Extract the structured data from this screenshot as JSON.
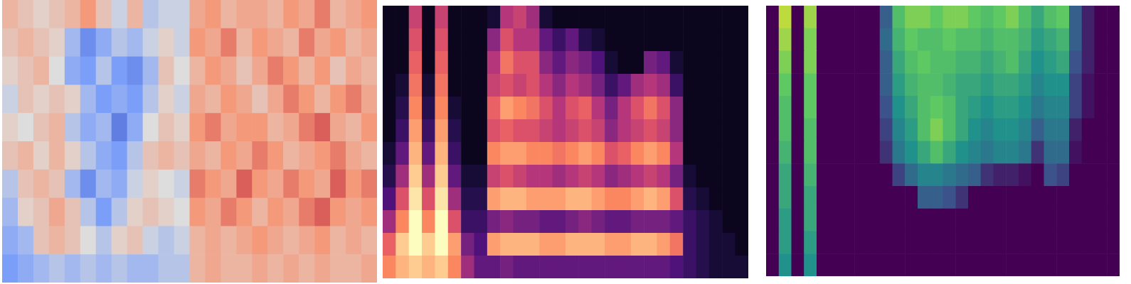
{
  "chart_data": [
    {
      "type": "heatmap",
      "color": "coolwarm",
      "zlim": [
        -1,
        1
      ],
      "tick_labels": false,
      "cells": [
        [
          0.3,
          0.2,
          0.1,
          0.2,
          0.3,
          0.5,
          0.2,
          -0.1,
          0.3,
          -0.2,
          -0.1,
          -0.1,
          0.4,
          0.5,
          0.3,
          0.4,
          0.4,
          0.3,
          0.5,
          0.4,
          0.6,
          0.3,
          0.4,
          0.5
        ],
        [
          0.2,
          0.3,
          0.2,
          0.1,
          -0.3,
          -0.6,
          -0.4,
          -0.2,
          -0.3,
          -0.1,
          0.1,
          -0.1,
          0.5,
          0.4,
          0.6,
          0.3,
          0.5,
          0.4,
          0.3,
          0.6,
          0.4,
          0.5,
          0.3,
          0.4
        ],
        [
          0.1,
          0.2,
          0.3,
          0.0,
          -0.4,
          -0.5,
          -0.2,
          -0.5,
          -0.6,
          -0.3,
          0.2,
          0.0,
          0.3,
          0.5,
          0.4,
          0.2,
          0.4,
          0.6,
          0.5,
          0.3,
          0.5,
          0.2,
          0.4,
          0.3
        ],
        [
          -0.1,
          0.2,
          0.1,
          0.2,
          0.1,
          -0.3,
          -0.5,
          -0.4,
          -0.5,
          -0.2,
          0.1,
          -0.1,
          0.4,
          0.3,
          0.5,
          0.4,
          0.2,
          0.4,
          0.6,
          0.5,
          0.3,
          0.5,
          0.6,
          0.4
        ],
        [
          0.1,
          0.0,
          0.2,
          0.3,
          -0.2,
          -0.4,
          -0.3,
          -0.7,
          -0.4,
          0.0,
          0.2,
          0.1,
          0.5,
          0.6,
          0.4,
          0.5,
          0.5,
          0.3,
          0.4,
          0.6,
          0.7,
          0.4,
          0.3,
          0.5
        ],
        [
          0.2,
          0.3,
          0.1,
          0.3,
          0.1,
          -0.2,
          -0.4,
          -0.5,
          -0.2,
          0.2,
          0.3,
          0.2,
          0.4,
          0.3,
          0.5,
          0.4,
          0.6,
          0.5,
          0.3,
          0.4,
          0.5,
          0.6,
          0.4,
          0.3
        ],
        [
          -0.2,
          0.2,
          0.3,
          0.2,
          -0.3,
          -0.6,
          -0.3,
          -0.4,
          -0.1,
          0.1,
          0.0,
          -0.1,
          0.6,
          0.5,
          0.4,
          0.7,
          0.5,
          0.4,
          0.6,
          0.5,
          0.4,
          0.7,
          0.5,
          0.6
        ],
        [
          -0.3,
          0.1,
          0.2,
          0.4,
          0.2,
          -0.2,
          -0.5,
          -0.2,
          0.1,
          0.2,
          0.1,
          0.0,
          0.5,
          0.4,
          0.6,
          0.5,
          0.3,
          0.5,
          0.4,
          0.6,
          0.7,
          0.5,
          0.4,
          0.5
        ],
        [
          -0.4,
          -0.3,
          0.2,
          0.3,
          0.2,
          0.0,
          -0.2,
          0.1,
          0.2,
          -0.1,
          -0.2,
          -0.1,
          0.3,
          0.4,
          0.3,
          0.4,
          0.5,
          0.4,
          0.3,
          0.4,
          0.5,
          0.3,
          0.4,
          0.3
        ],
        [
          -0.5,
          -0.4,
          -0.3,
          -0.2,
          -0.3,
          -0.2,
          -0.3,
          -0.2,
          -0.3,
          -0.3,
          -0.2,
          -0.2,
          0.3,
          0.4,
          0.3,
          0.3,
          0.4,
          0.3,
          0.4,
          0.3,
          0.4,
          0.3,
          0.3,
          0.4
        ]
      ]
    },
    {
      "type": "heatmap",
      "color": "magma",
      "zlim": [
        0,
        1
      ],
      "tick_labels": false,
      "cells": [
        [
          0.05,
          0.05,
          0.55,
          0.05,
          0.55,
          0.05,
          0.05,
          0.05,
          0.1,
          0.5,
          0.55,
          0.45,
          0.1,
          0.05,
          0.05,
          0.05,
          0.05,
          0.05,
          0.05,
          0.05,
          0.05,
          0.05,
          0.05,
          0.05,
          0.05,
          0.05,
          0.05,
          0.05
        ],
        [
          0.05,
          0.05,
          0.6,
          0.05,
          0.6,
          0.05,
          0.05,
          0.05,
          0.4,
          0.6,
          0.5,
          0.5,
          0.3,
          0.2,
          0.3,
          0.15,
          0.1,
          0.05,
          0.05,
          0.05,
          0.05,
          0.05,
          0.05,
          0.05,
          0.05,
          0.05,
          0.05,
          0.05
        ],
        [
          0.05,
          0.05,
          0.65,
          0.05,
          0.65,
          0.05,
          0.05,
          0.05,
          0.5,
          0.7,
          0.6,
          0.6,
          0.4,
          0.3,
          0.4,
          0.35,
          0.25,
          0.1,
          0.05,
          0.05,
          0.35,
          0.3,
          0.1,
          0.05,
          0.05,
          0.05,
          0.05,
          0.05
        ],
        [
          0.05,
          0.1,
          0.7,
          0.1,
          0.7,
          0.05,
          0.05,
          0.05,
          0.55,
          0.6,
          0.55,
          0.6,
          0.5,
          0.4,
          0.5,
          0.45,
          0.35,
          0.2,
          0.3,
          0.45,
          0.5,
          0.45,
          0.2,
          0.05,
          0.05,
          0.05,
          0.05,
          0.05
        ],
        [
          0.05,
          0.15,
          0.75,
          0.15,
          0.75,
          0.1,
          0.05,
          0.05,
          0.65,
          0.8,
          0.75,
          0.7,
          0.6,
          0.5,
          0.6,
          0.65,
          0.5,
          0.35,
          0.5,
          0.6,
          0.7,
          0.6,
          0.4,
          0.05,
          0.05,
          0.05,
          0.05,
          0.05
        ],
        [
          0.05,
          0.2,
          0.8,
          0.2,
          0.8,
          0.15,
          0.05,
          0.05,
          0.6,
          0.65,
          0.6,
          0.6,
          0.55,
          0.5,
          0.55,
          0.6,
          0.55,
          0.4,
          0.5,
          0.55,
          0.6,
          0.55,
          0.4,
          0.05,
          0.05,
          0.05,
          0.05,
          0.05
        ],
        [
          0.1,
          0.3,
          0.85,
          0.3,
          0.85,
          0.2,
          0.05,
          0.05,
          0.75,
          0.8,
          0.8,
          0.75,
          0.75,
          0.7,
          0.75,
          0.8,
          0.75,
          0.6,
          0.65,
          0.75,
          0.8,
          0.75,
          0.5,
          0.05,
          0.05,
          0.05,
          0.05,
          0.05
        ],
        [
          0.15,
          0.45,
          0.9,
          0.45,
          0.9,
          0.3,
          0.1,
          0.1,
          0.55,
          0.6,
          0.55,
          0.5,
          0.5,
          0.45,
          0.5,
          0.55,
          0.5,
          0.4,
          0.45,
          0.5,
          0.55,
          0.5,
          0.35,
          0.1,
          0.05,
          0.05,
          0.05,
          0.05
        ],
        [
          0.25,
          0.6,
          0.95,
          0.6,
          0.95,
          0.45,
          0.15,
          0.15,
          0.8,
          0.85,
          0.85,
          0.8,
          0.8,
          0.8,
          0.85,
          0.85,
          0.8,
          0.75,
          0.75,
          0.8,
          0.85,
          0.8,
          0.6,
          0.15,
          0.1,
          0.05,
          0.05,
          0.05
        ],
        [
          0.45,
          0.75,
          1.0,
          0.75,
          1.0,
          0.6,
          0.2,
          0.2,
          0.35,
          0.4,
          0.35,
          0.35,
          0.3,
          0.3,
          0.35,
          0.4,
          0.35,
          0.3,
          0.3,
          0.35,
          0.35,
          0.35,
          0.3,
          0.2,
          0.15,
          0.1,
          0.05,
          0.05
        ],
        [
          0.65,
          0.9,
          1.0,
          0.9,
          1.0,
          0.8,
          0.35,
          0.25,
          0.8,
          0.85,
          0.85,
          0.85,
          0.8,
          0.8,
          0.85,
          0.85,
          0.85,
          0.8,
          0.8,
          0.85,
          0.85,
          0.8,
          0.7,
          0.2,
          0.15,
          0.1,
          0.1,
          0.05
        ],
        [
          0.75,
          0.85,
          0.9,
          0.85,
          0.9,
          0.75,
          0.45,
          0.3,
          0.3,
          0.35,
          0.3,
          0.3,
          0.3,
          0.3,
          0.3,
          0.3,
          0.3,
          0.3,
          0.3,
          0.3,
          0.3,
          0.3,
          0.25,
          0.2,
          0.15,
          0.1,
          0.1,
          0.1
        ]
      ]
    },
    {
      "type": "heatmap",
      "color": "viridis",
      "zlim": [
        0,
        1
      ],
      "tick_labels": false,
      "cells": [
        [
          0,
          0.9,
          0,
          0.85,
          0,
          0,
          0,
          0,
          0,
          0.3,
          0.7,
          0.8,
          0.8,
          0.75,
          0.8,
          0.8,
          0.75,
          0.7,
          0.75,
          0.8,
          0.7,
          0.6,
          0.7,
          0.75,
          0.3,
          0.1,
          0,
          0
        ],
        [
          0,
          0.85,
          0,
          0.8,
          0,
          0,
          0,
          0,
          0,
          0.35,
          0.65,
          0.75,
          0.7,
          0.7,
          0.75,
          0.7,
          0.7,
          0.65,
          0.7,
          0.7,
          0.65,
          0.55,
          0.6,
          0.65,
          0.3,
          0.1,
          0,
          0
        ],
        [
          0,
          0.8,
          0,
          0.8,
          0,
          0,
          0,
          0,
          0,
          0.3,
          0.6,
          0.7,
          0.75,
          0.7,
          0.7,
          0.65,
          0.65,
          0.6,
          0.65,
          0.7,
          0.6,
          0.5,
          0.55,
          0.6,
          0.25,
          0.1,
          0,
          0
        ],
        [
          0,
          0.75,
          0,
          0.75,
          0,
          0,
          0,
          0,
          0,
          0.3,
          0.55,
          0.65,
          0.7,
          0.7,
          0.65,
          0.6,
          0.6,
          0.55,
          0.6,
          0.6,
          0.55,
          0.45,
          0.5,
          0.5,
          0.2,
          0.05,
          0,
          0
        ],
        [
          0,
          0.7,
          0,
          0.75,
          0,
          0,
          0,
          0,
          0,
          0.25,
          0.5,
          0.6,
          0.7,
          0.75,
          0.7,
          0.6,
          0.55,
          0.5,
          0.55,
          0.55,
          0.5,
          0.4,
          0.45,
          0.45,
          0.2,
          0.05,
          0,
          0
        ],
        [
          0,
          0.7,
          0,
          0.7,
          0,
          0,
          0,
          0,
          0,
          0.2,
          0.45,
          0.55,
          0.7,
          0.8,
          0.7,
          0.6,
          0.5,
          0.45,
          0.5,
          0.5,
          0.45,
          0.3,
          0.4,
          0.4,
          0.1,
          0,
          0,
          0
        ],
        [
          0,
          0.65,
          0,
          0.7,
          0,
          0,
          0,
          0,
          0,
          0.15,
          0.4,
          0.5,
          0.6,
          0.7,
          0.6,
          0.5,
          0.45,
          0.4,
          0.45,
          0.45,
          0.4,
          0.15,
          0.35,
          0.35,
          0.05,
          0,
          0,
          0
        ],
        [
          0,
          0.6,
          0,
          0.65,
          0,
          0,
          0,
          0,
          0,
          0,
          0.2,
          0.35,
          0.45,
          0.45,
          0.4,
          0.35,
          0.3,
          0.15,
          0.1,
          0.1,
          0.05,
          0,
          0.25,
          0.2,
          0,
          0,
          0,
          0
        ],
        [
          0,
          0.6,
          0,
          0.6,
          0,
          0,
          0,
          0,
          0,
          0,
          0,
          0,
          0.3,
          0.3,
          0.25,
          0.15,
          0,
          0,
          0,
          0,
          0,
          0,
          0,
          0,
          0,
          0,
          0,
          0
        ],
        [
          0,
          0.55,
          0,
          0.6,
          0,
          0,
          0,
          0,
          0,
          0,
          0,
          0,
          0,
          0,
          0,
          0,
          0,
          0,
          0,
          0,
          0,
          0,
          0,
          0,
          0,
          0,
          0,
          0
        ],
        [
          0,
          0.55,
          0,
          0.55,
          0,
          0,
          0,
          0,
          0,
          0,
          0,
          0,
          0,
          0,
          0,
          0,
          0,
          0,
          0,
          0,
          0,
          0,
          0,
          0,
          0,
          0,
          0,
          0
        ],
        [
          0,
          0.5,
          0,
          0.5,
          0,
          0,
          0,
          0,
          0,
          0,
          0,
          0,
          0,
          0,
          0,
          0,
          0,
          0,
          0,
          0,
          0,
          0,
          0,
          0,
          0,
          0,
          0,
          0
        ]
      ]
    }
  ]
}
